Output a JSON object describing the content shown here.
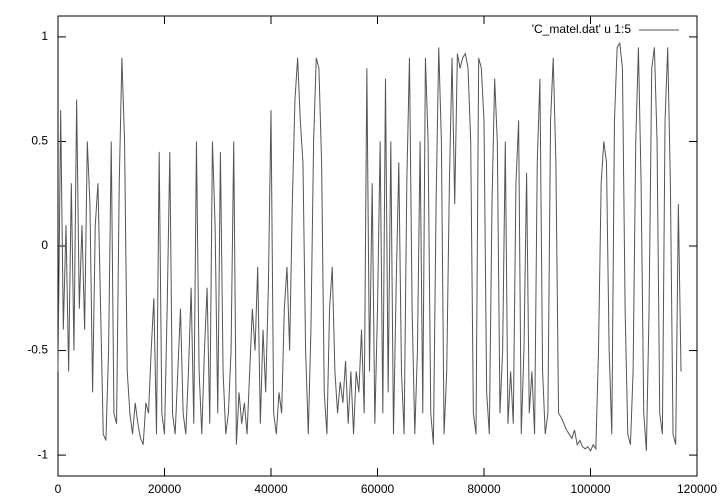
{
  "chart_data": {
    "type": "line",
    "x": [
      0,
      500,
      1000,
      1500,
      2000,
      2500,
      3000,
      3500,
      4000,
      4500,
      5000,
      5500,
      6000,
      6500,
      7000,
      7500,
      8000,
      8500,
      9000,
      9500,
      10000,
      10500,
      11000,
      11500,
      12000,
      12500,
      13000,
      13500,
      14000,
      14500,
      15000,
      15500,
      16000,
      16500,
      17000,
      17500,
      18000,
      18500,
      19000,
      19500,
      20000,
      20500,
      21000,
      21500,
      22000,
      22500,
      23000,
      23500,
      24000,
      24500,
      25000,
      25500,
      26000,
      26500,
      27000,
      27500,
      28000,
      28500,
      29000,
      29500,
      30000,
      30500,
      31000,
      31500,
      32000,
      32500,
      33000,
      33500,
      34000,
      34500,
      35000,
      35500,
      36000,
      36500,
      37000,
      37500,
      38000,
      38500,
      39000,
      39500,
      40000,
      40500,
      41000,
      41500,
      42000,
      42500,
      43000,
      43500,
      44000,
      44500,
      45000,
      45500,
      46000,
      46500,
      47000,
      47500,
      48000,
      48500,
      49000,
      49500,
      50000,
      50500,
      51000,
      51500,
      52000,
      52500,
      53000,
      53500,
      54000,
      54500,
      55000,
      55500,
      56000,
      56500,
      57000,
      57500,
      58000,
      58500,
      59000,
      59500,
      60000,
      60500,
      61000,
      61500,
      62000,
      62500,
      63000,
      63500,
      64000,
      64500,
      65000,
      65500,
      66000,
      66500,
      67000,
      67500,
      68000,
      68500,
      69000,
      69500,
      70000,
      70500,
      71000,
      71500,
      72000,
      72500,
      73000,
      73500,
      74000,
      74500,
      75000,
      75500,
      76000,
      76500,
      77000,
      77500,
      78000,
      78500,
      79000,
      79500,
      80000,
      80500,
      81000,
      81500,
      82000,
      82500,
      83000,
      83500,
      84000,
      84500,
      85000,
      85500,
      86000,
      86500,
      87000,
      87500,
      88000,
      88500,
      89000,
      89500,
      90000,
      90500,
      91000,
      91500,
      92000,
      92500,
      93000,
      93500,
      94000,
      94500,
      95000,
      95500,
      96000,
      96500,
      97000,
      97500,
      98000,
      98500,
      99000,
      99500,
      100000,
      100500,
      101000,
      101500,
      102000,
      102500,
      103000,
      103500,
      104000,
      104500,
      105000,
      105500,
      106000,
      106500,
      107000,
      107500,
      108000,
      108500,
      109000,
      109500,
      110000,
      110500,
      111000,
      111500,
      112000,
      112500,
      113000,
      113500,
      114000,
      114500,
      115000,
      115500,
      116000,
      116500,
      117000
    ],
    "series": [
      {
        "name": "'C_matel.dat' u 1:5",
        "color": "#555555",
        "values": [
          -0.6,
          0.65,
          -0.4,
          0.1,
          -0.6,
          0.3,
          -0.5,
          0.7,
          -0.3,
          0.1,
          -0.4,
          0.5,
          0.2,
          -0.7,
          0.1,
          0.3,
          -0.3,
          -0.9,
          -0.93,
          -0.5,
          0.5,
          -0.8,
          -0.85,
          0.3,
          0.9,
          0.5,
          -0.6,
          -0.8,
          -0.9,
          -0.75,
          -0.85,
          -0.92,
          -0.95,
          -0.75,
          -0.8,
          -0.5,
          -0.25,
          -0.9,
          0.45,
          -0.8,
          -0.9,
          -0.3,
          0.45,
          -0.8,
          -0.9,
          -0.6,
          -0.3,
          -0.8,
          -0.9,
          -0.6,
          -0.2,
          -0.85,
          0.5,
          -0.6,
          -0.9,
          -0.5,
          -0.2,
          -0.85,
          0.5,
          0.1,
          -0.8,
          0.45,
          -0.6,
          -0.9,
          -0.8,
          -0.5,
          0.5,
          -0.95,
          -0.7,
          -0.85,
          -0.75,
          -0.9,
          -0.6,
          -0.3,
          -0.5,
          -0.1,
          -0.85,
          -0.4,
          -0.7,
          -0.2,
          0.65,
          -0.8,
          -0.9,
          -0.7,
          -0.8,
          -0.3,
          -0.1,
          -0.5,
          0.2,
          0.7,
          0.9,
          0.6,
          0.4,
          -0.5,
          -0.9,
          -0.4,
          0.5,
          0.9,
          0.85,
          0.4,
          -0.7,
          -0.9,
          -0.3,
          -0.1,
          -0.6,
          -0.8,
          -0.65,
          -0.75,
          -0.55,
          -0.85,
          -0.6,
          -0.9,
          -0.6,
          -0.7,
          -0.4,
          -0.8,
          0.85,
          -0.6,
          0.3,
          -0.85,
          -0.3,
          0.5,
          -0.8,
          0.8,
          -0.7,
          0.5,
          -0.9,
          -0.2,
          0.4,
          -0.6,
          -0.9,
          0.3,
          0.9,
          -0.3,
          -0.9,
          -0.5,
          0.5,
          -0.8,
          0.9,
          0.5,
          -0.8,
          -0.95,
          0.2,
          0.95,
          0.5,
          -0.9,
          -0.6,
          0.3,
          0.9,
          0.2,
          0.92,
          0.85,
          0.9,
          0.92,
          0.85,
          0.5,
          -0.8,
          -0.9,
          0.9,
          0.85,
          0.6,
          -0.7,
          -0.9,
          0.2,
          0.8,
          0.5,
          -0.8,
          -0.5,
          0.5,
          -0.85,
          -0.6,
          -0.85,
          0.3,
          0.6,
          -0.9,
          -0.5,
          0.35,
          -0.8,
          -0.6,
          -0.9,
          0.4,
          0.8,
          -0.6,
          -0.9,
          -0.8,
          0.6,
          0.9,
          0.4,
          -0.8,
          -0.82,
          -0.85,
          -0.88,
          -0.9,
          -0.92,
          -0.88,
          -0.95,
          -0.93,
          -0.96,
          -0.97,
          -0.96,
          -0.98,
          -0.95,
          -0.97,
          -0.5,
          0.3,
          0.5,
          0.4,
          -0.5,
          -0.9,
          0.6,
          0.95,
          0.97,
          0.85,
          -0.3,
          -0.9,
          -0.95,
          -0.6,
          0.5,
          0.95,
          0.3,
          -0.8,
          -0.98,
          -0.3,
          0.85,
          0.95,
          0.5,
          -0.8,
          -0.9,
          0.6,
          0.95,
          0.3,
          -0.9,
          -0.95,
          0.2,
          -0.6
        ]
      }
    ],
    "xlim": [
      0,
      120000
    ],
    "xticks": [
      0,
      20000,
      40000,
      60000,
      80000,
      100000,
      120000
    ],
    "ylim": [
      -1.1,
      1.1
    ],
    "yticks": [
      -1,
      -0.5,
      0,
      0.5,
      1
    ],
    "grid": false,
    "legend": "top-right"
  }
}
